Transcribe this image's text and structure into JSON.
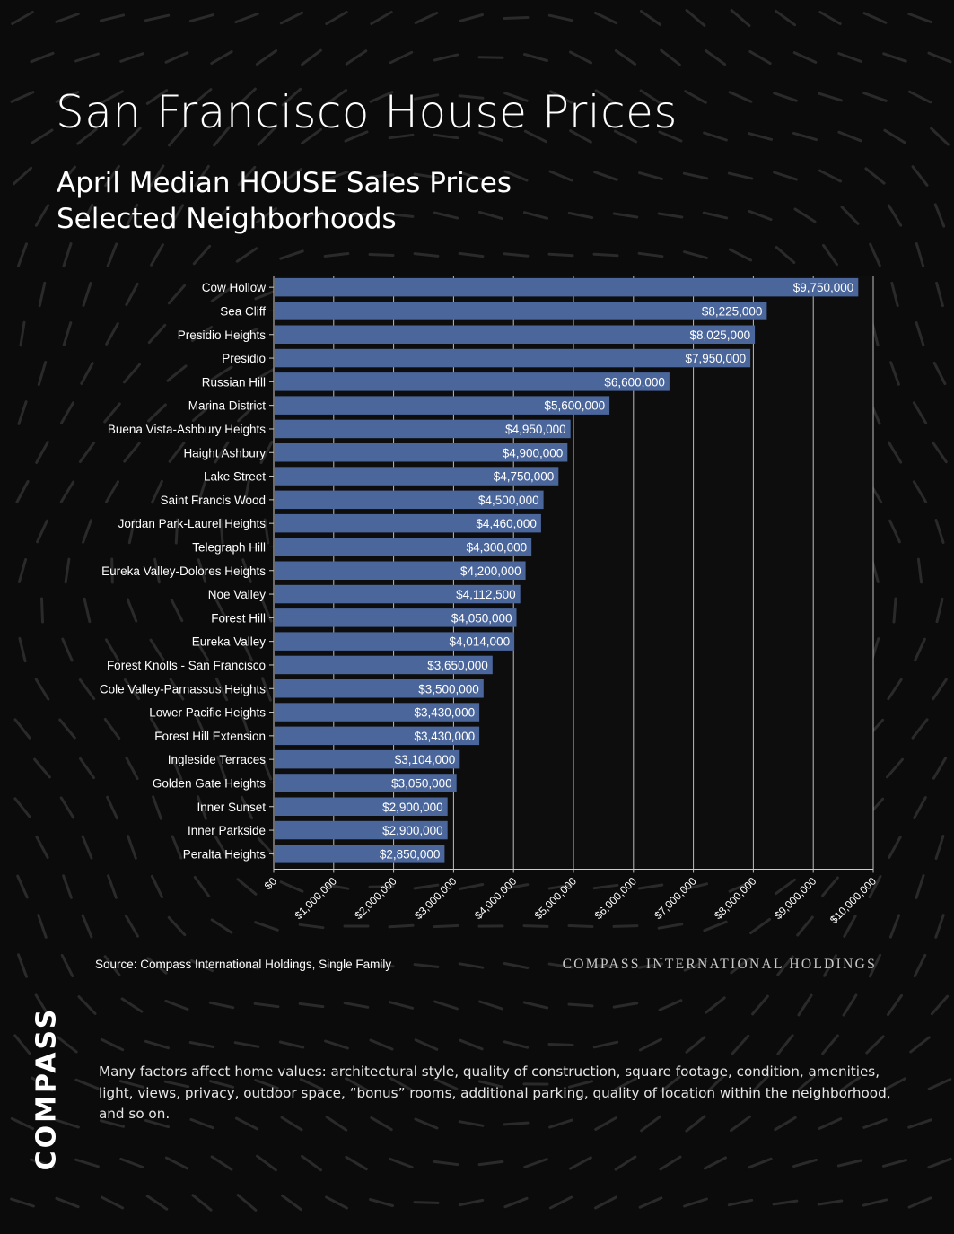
{
  "page": {
    "title": "San Francisco House Prices",
    "subtitle_line1": "April Median HOUSE Sales Prices",
    "subtitle_line2": "Selected Neighborhoods",
    "source": "Source: Compass International Holdings, Single Family",
    "holdings": "COMPASS INTERNATIONAL HOLDINGS",
    "logo": "COMPASS",
    "footnote": "Many factors affect home values: architectural style, quality of construction, square footage, condition, amenities, light, views, privacy, outdoor space, “bonus” rooms, additional parking, quality of location within the neighborhood, and so on."
  },
  "colors": {
    "background": "#0b0b0b",
    "bar": "#4a669b",
    "gridline": "#bdbdbd",
    "text": "#ffffff"
  },
  "chart_data": {
    "type": "bar",
    "orientation": "horizontal",
    "title": "April Median HOUSE Sales Prices Selected Neighborhoods",
    "xlim": [
      0,
      10000000
    ],
    "grid": true,
    "categories": [
      "Cow Hollow",
      "Sea Cliff",
      "Presidio Heights",
      "Presidio",
      "Russian Hill",
      "Marina District",
      "Buena Vista-Ashbury Heights",
      "Haight Ashbury",
      "Lake Street",
      "Saint Francis Wood",
      "Jordan Park-Laurel Heights",
      "Telegraph Hill",
      "Eureka Valley-Dolores Heights",
      "Noe Valley",
      "Forest Hill",
      "Eureka Valley",
      "Forest Knolls - San Francisco",
      "Cole Valley-Parnassus Heights",
      "Lower Pacific Heights",
      "Forest Hill Extension",
      "Ingleside Terraces",
      "Golden Gate Heights",
      "Inner Sunset",
      "Inner Parkside",
      "Peralta Heights"
    ],
    "values": [
      9750000,
      8225000,
      8025000,
      7950000,
      6600000,
      5600000,
      4950000,
      4900000,
      4750000,
      4500000,
      4460000,
      4300000,
      4200000,
      4112500,
      4050000,
      4014000,
      3650000,
      3500000,
      3430000,
      3430000,
      3104000,
      3050000,
      2900000,
      2900000,
      2850000
    ],
    "data_labels": [
      "$9,750,000",
      "$8,225,000",
      "$8,025,000",
      "$7,950,000",
      "$6,600,000",
      "$5,600,000",
      "$4,950,000",
      "$4,900,000",
      "$4,750,000",
      "$4,500,000",
      "$4,460,000",
      "$4,300,000",
      "$4,200,000",
      "$4,112,500",
      "$4,050,000",
      "$4,014,000",
      "$3,650,000",
      "$3,500,000",
      "$3,430,000",
      "$3,430,000",
      "$3,104,000",
      "$3,050,000",
      "$2,900,000",
      "$2,900,000",
      "$2,850,000"
    ],
    "ticks": [
      0,
      1000000,
      2000000,
      3000000,
      4000000,
      5000000,
      6000000,
      7000000,
      8000000,
      9000000,
      10000000
    ],
    "tick_labels": [
      "$0",
      "$1,000,000",
      "$2,000,000",
      "$3,000,000",
      "$4,000,000",
      "$5,000,000",
      "$6,000,000",
      "$7,000,000",
      "$8,000,000",
      "$9,000,000",
      "$10,000,000"
    ]
  }
}
